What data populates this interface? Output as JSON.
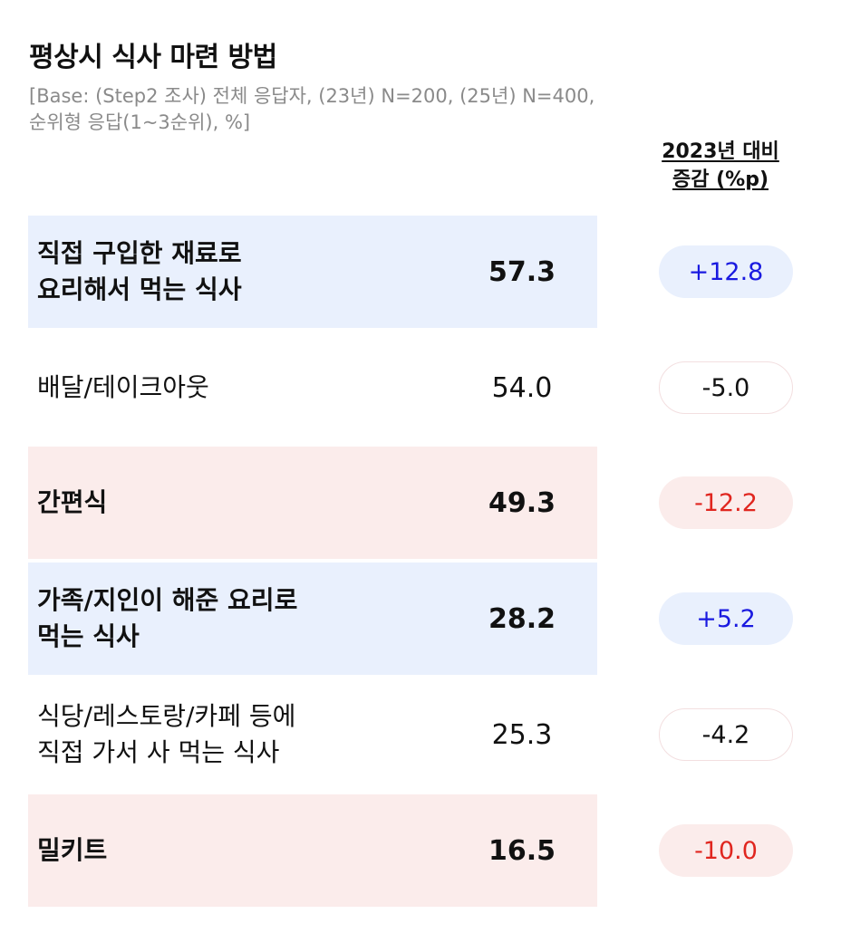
{
  "chart_data": {
    "type": "table",
    "title": "평상시 식사 마련 방법",
    "subtitle": "[Base: (Step2 조사) 전체 응답자, (23년) N=200, (25년) N=400,\n순위형 응답(1~3순위), %]",
    "change_header_line1": "2023년 대비",
    "change_header_line2": "증감 (%p)",
    "rows": [
      {
        "label": "직접 구입한 재료로\n요리해서 먹는 식사",
        "value": "57.3",
        "change": "+12.8",
        "highlight": "blue",
        "change_style": "positive"
      },
      {
        "label": "배달/테이크아웃",
        "value": "54.0",
        "change": "-5.0",
        "highlight": "none",
        "change_style": "neutral"
      },
      {
        "label": "간편식",
        "value": "49.3",
        "change": "-12.2",
        "highlight": "red",
        "change_style": "negative"
      },
      {
        "label": "가족/지인이 해준 요리로\n먹는 식사",
        "value": "28.2",
        "change": "+5.2",
        "highlight": "blue",
        "change_style": "positive"
      },
      {
        "label": "식당/레스토랑/카페 등에\n직접 가서 사 먹는 식사",
        "value": "25.3",
        "change": "-4.2",
        "highlight": "none",
        "change_style": "neutral"
      },
      {
        "label": "밀키트",
        "value": "16.5",
        "change": "-10.0",
        "highlight": "red",
        "change_style": "negative"
      }
    ]
  },
  "colors": {
    "increase_bg": "#e9f0fd",
    "increase_text": "#1a1ae0",
    "decrease_bg": "#fbeceb",
    "decrease_text": "#e0261f",
    "neutral_border": "#f3dfe0",
    "subtitle": "#8a8a8a"
  }
}
